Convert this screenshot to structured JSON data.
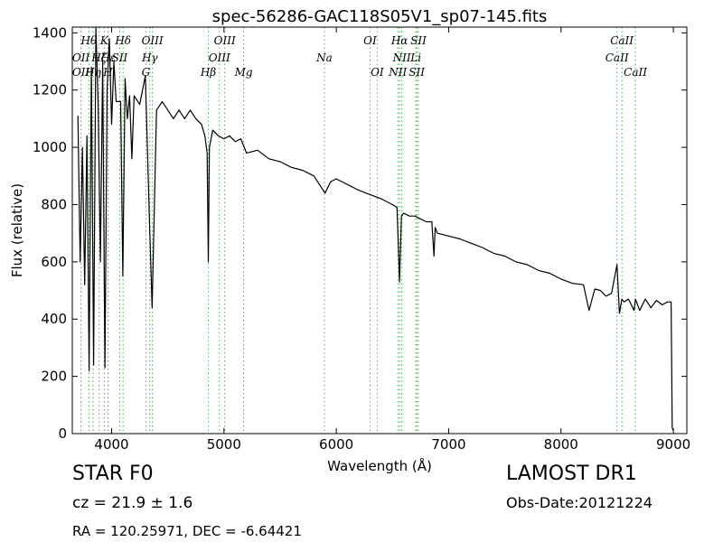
{
  "chart_data": {
    "type": "line",
    "title": "spec-56286-GAC118S05V1_sp07-145.fits",
    "xlabel": "Wavelength (Å)",
    "ylabel": "Flux (relative)",
    "xlim": [
      3650,
      9120
    ],
    "ylim": [
      0,
      1420
    ],
    "xticks": [
      4000,
      5000,
      6000,
      7000,
      8000,
      9000
    ],
    "yticks": [
      0,
      200,
      400,
      600,
      800,
      1000,
      1200,
      1400
    ],
    "grid": false,
    "series": [
      {
        "color": "#000000",
        "x": [
          3700,
          3720,
          3740,
          3760,
          3780,
          3800,
          3820,
          3840,
          3860,
          3880,
          3900,
          3920,
          3940,
          3960,
          3980,
          4000,
          4020,
          4040,
          4060,
          4080,
          4100,
          4120,
          4140,
          4160,
          4180,
          4200,
          4250,
          4300,
          4340,
          4360,
          4400,
          4450,
          4500,
          4550,
          4600,
          4650,
          4700,
          4750,
          4800,
          4830,
          4850,
          4861,
          4870,
          4900,
          4950,
          5000,
          5050,
          5100,
          5150,
          5200,
          5300,
          5400,
          5500,
          5600,
          5700,
          5800,
          5850,
          5900,
          5950,
          6000,
          6100,
          6200,
          6300,
          6400,
          6500,
          6540,
          6563,
          6580,
          6600,
          6650,
          6700,
          6800,
          6850,
          6869,
          6880,
          6900,
          7000,
          7100,
          7200,
          7300,
          7400,
          7500,
          7600,
          7700,
          7800,
          7900,
          8000,
          8100,
          8200,
          8250,
          8300,
          8350,
          8400,
          8450,
          8498,
          8520,
          8542,
          8560,
          8600,
          8650,
          8662,
          8700,
          8750,
          8800,
          8850,
          8900,
          8950,
          8980,
          8990,
          9000
        ],
        "y": [
          1110,
          600,
          1000,
          520,
          1040,
          220,
          1280,
          240,
          1420,
          1150,
          600,
          1300,
          230,
          1200,
          1380,
          1080,
          1300,
          1160,
          1160,
          1160,
          550,
          1240,
          1100,
          1180,
          960,
          1180,
          1150,
          1250,
          700,
          440,
          1130,
          1160,
          1130,
          1100,
          1130,
          1100,
          1130,
          1100,
          1080,
          1040,
          980,
          600,
          1000,
          1060,
          1040,
          1030,
          1040,
          1020,
          1030,
          980,
          990,
          960,
          950,
          930,
          920,
          900,
          870,
          840,
          880,
          890,
          870,
          850,
          835,
          820,
          800,
          790,
          530,
          760,
          770,
          760,
          760,
          740,
          740,
          620,
          720,
          700,
          690,
          680,
          665,
          650,
          630,
          620,
          600,
          590,
          570,
          560,
          540,
          525,
          520,
          430,
          505,
          500,
          480,
          490,
          590,
          420,
          470,
          460,
          470,
          430,
          470,
          430,
          470,
          440,
          465,
          450,
          460,
          460,
          20,
          10
        ]
      }
    ],
    "lines": [
      {
        "name": "OII",
        "x": 3727,
        "row": 1
      },
      {
        "name": "OII",
        "x": 3727,
        "row": 2
      },
      {
        "name": "Hθ",
        "x": 3798,
        "row": 0
      },
      {
        "name": "Hη",
        "x": 3835,
        "row": 2
      },
      {
        "name": "Hζ",
        "x": 3889,
        "row": 1
      },
      {
        "name": "K",
        "x": 3934,
        "row": 0
      },
      {
        "name": "H",
        "x": 3968,
        "row": 2
      },
      {
        "name": "Hε",
        "x": 3970,
        "row": 1
      },
      {
        "name": "SII",
        "x": 4072,
        "row": 1
      },
      {
        "name": "Hδ",
        "x": 4102,
        "row": 0
      },
      {
        "name": "G",
        "x": 4305,
        "row": 2
      },
      {
        "name": "Hγ",
        "x": 4340,
        "row": 1
      },
      {
        "name": "OIII",
        "x": 4363,
        "row": 0
      },
      {
        "name": "Hβ",
        "x": 4861,
        "row": 2
      },
      {
        "name": "OIII",
        "x": 4959,
        "row": 1
      },
      {
        "name": "OIII",
        "x": 5007,
        "row": 0
      },
      {
        "name": "Mg",
        "x": 5175,
        "row": 2
      },
      {
        "name": "Na",
        "x": 5894,
        "row": 1
      },
      {
        "name": "OI",
        "x": 6300,
        "row": 0
      },
      {
        "name": "OI",
        "x": 6364,
        "row": 2
      },
      {
        "name": "NII",
        "x": 6548,
        "row": 2
      },
      {
        "name": "Hα",
        "x": 6563,
        "row": 0
      },
      {
        "name": "NII",
        "x": 6583,
        "row": 1
      },
      {
        "name": "Li",
        "x": 6708,
        "row": 1
      },
      {
        "name": "SII",
        "x": 6716,
        "row": 2
      },
      {
        "name": "SII",
        "x": 6731,
        "row": 0
      },
      {
        "name": "CaII",
        "x": 8498,
        "row": 1
      },
      {
        "name": "CaII",
        "x": 8542,
        "row": 0
      },
      {
        "name": "CaII",
        "x": 8662,
        "row": 2
      }
    ],
    "line_color": "#4caf50"
  },
  "info": {
    "class": "STAR   F0",
    "cz": "cz = 21.9  ± 1.6",
    "radec": "RA = 120.25971, DEC = -6.64421",
    "survey": "LAMOST DR1",
    "obsdate": "Obs-Date:20121224"
  }
}
